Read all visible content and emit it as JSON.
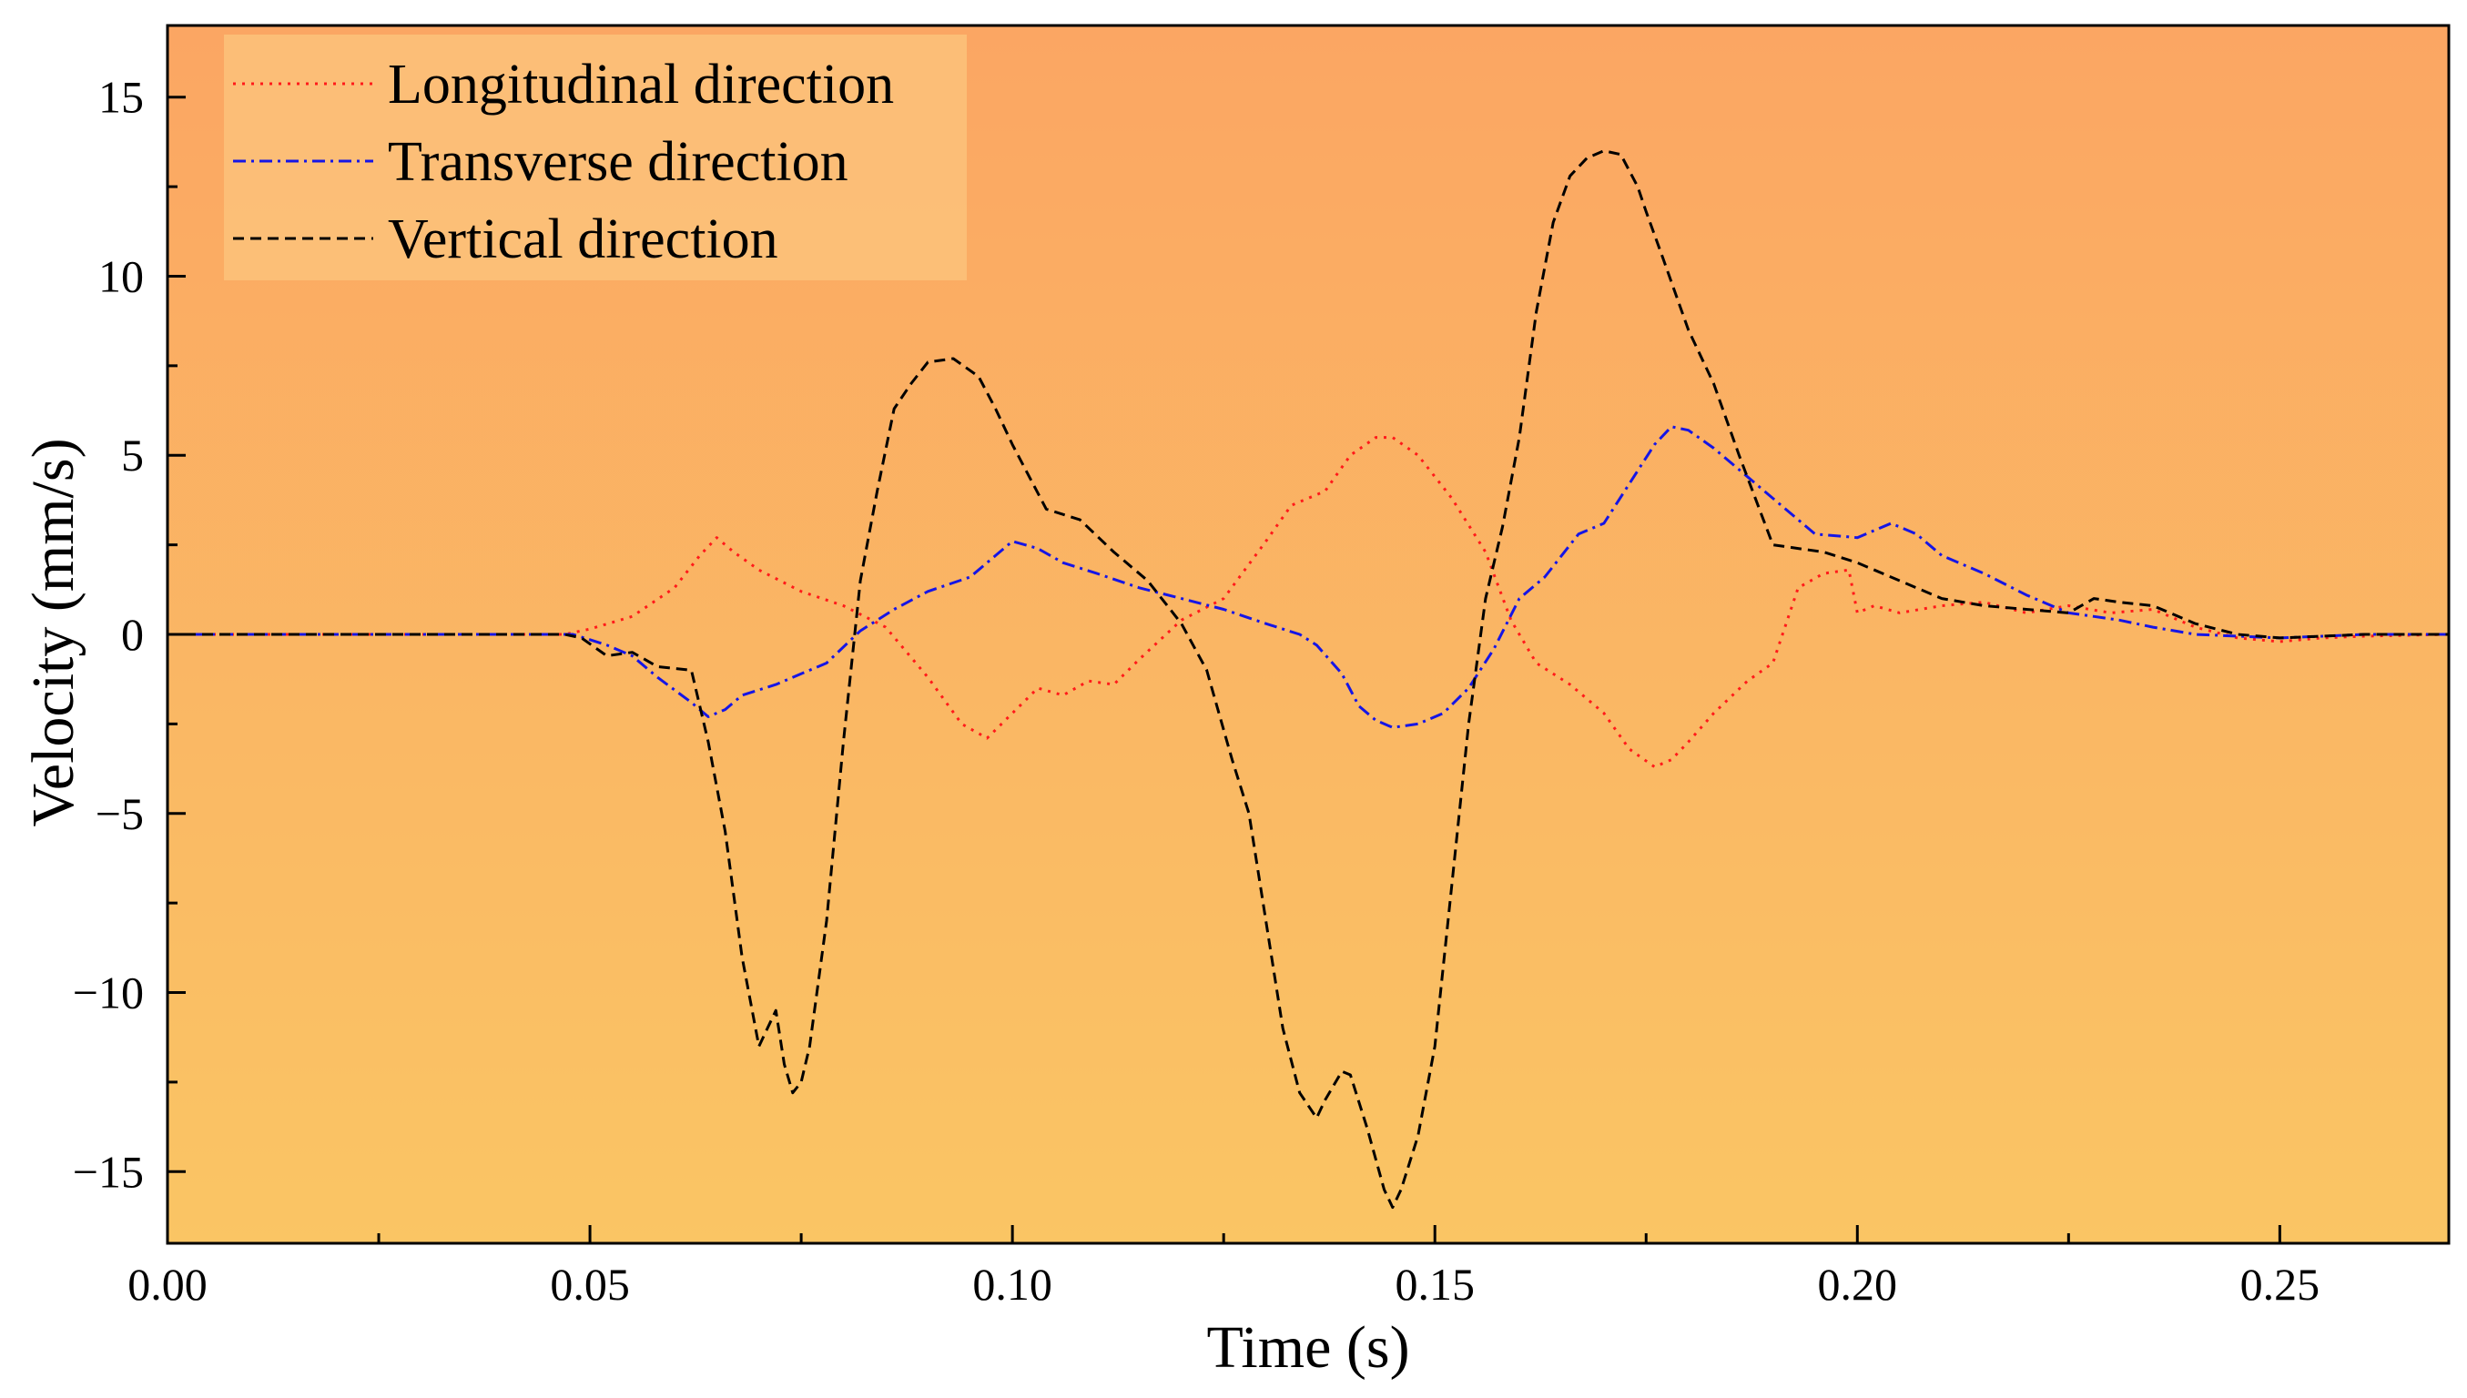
{
  "colors": {
    "background_top": "#FBA663",
    "background_bottom": "#FAC564",
    "legend_background": "#FCC27A",
    "longitudinal": "#FF1A1A",
    "transverse": "#1515E6",
    "vertical": "#000000"
  },
  "chart_data": {
    "type": "line",
    "title": "",
    "xlabel": "Time (s)",
    "ylabel": "Velocity (mm/s)",
    "xlim": [
      0.0,
      0.27
    ],
    "ylim": [
      -17,
      17
    ],
    "xticks": [
      0.0,
      0.05,
      0.1,
      0.15,
      0.2,
      0.25
    ],
    "xtick_labels": [
      "0.00",
      "0.05",
      "0.10",
      "0.15",
      "0.20",
      "0.25"
    ],
    "yticks": [
      -15,
      -10,
      -5,
      0,
      5,
      10,
      15
    ],
    "ytick_labels": [
      "−15",
      "−10",
      "−5",
      "0",
      "5",
      "10",
      "15"
    ],
    "grid": false,
    "legend_position": "top-left",
    "series": [
      {
        "name": "Longitudinal direction",
        "style": "dotted",
        "x": [
          0,
          0.047,
          0.05,
          0.055,
          0.06,
          0.063,
          0.065,
          0.067,
          0.07,
          0.075,
          0.08,
          0.085,
          0.09,
          0.094,
          0.097,
          0.1,
          0.103,
          0.106,
          0.109,
          0.112,
          0.115,
          0.12,
          0.125,
          0.13,
          0.133,
          0.137,
          0.14,
          0.143,
          0.145,
          0.148,
          0.152,
          0.156,
          0.159,
          0.162,
          0.166,
          0.17,
          0.173,
          0.176,
          0.178,
          0.18,
          0.183,
          0.187,
          0.19,
          0.193,
          0.196,
          0.199,
          0.2,
          0.202,
          0.205,
          0.21,
          0.215,
          0.22,
          0.225,
          0.23,
          0.235,
          0.24,
          0.245,
          0.25,
          0.255,
          0.26,
          0.27
        ],
        "y": [
          0,
          0,
          0.15,
          0.5,
          1.3,
          2.2,
          2.7,
          2.3,
          1.8,
          1.2,
          0.8,
          0.2,
          -1.2,
          -2.5,
          -2.9,
          -2.2,
          -1.5,
          -1.7,
          -1.3,
          -1.4,
          -0.7,
          0.4,
          1.0,
          2.6,
          3.6,
          4.0,
          5.0,
          5.5,
          5.5,
          5.0,
          3.8,
          2.3,
          0.4,
          -0.8,
          -1.4,
          -2.2,
          -3.2,
          -3.7,
          -3.5,
          -3.0,
          -2.2,
          -1.3,
          -0.8,
          1.3,
          1.7,
          1.8,
          0.6,
          0.8,
          0.6,
          0.8,
          0.9,
          0.6,
          0.8,
          0.6,
          0.7,
          0.2,
          -0.1,
          -0.2,
          -0.1,
          -0.05,
          0
        ]
      },
      {
        "name": "Transverse direction",
        "style": "dashdot",
        "x": [
          0,
          0.048,
          0.052,
          0.055,
          0.058,
          0.062,
          0.064,
          0.066,
          0.068,
          0.072,
          0.075,
          0.078,
          0.082,
          0.086,
          0.09,
          0.095,
          0.098,
          0.1,
          0.103,
          0.106,
          0.11,
          0.115,
          0.12,
          0.125,
          0.13,
          0.134,
          0.136,
          0.139,
          0.141,
          0.143,
          0.145,
          0.148,
          0.151,
          0.154,
          0.157,
          0.16,
          0.163,
          0.167,
          0.17,
          0.173,
          0.176,
          0.178,
          0.18,
          0.183,
          0.186,
          0.19,
          0.195,
          0.2,
          0.204,
          0.207,
          0.21,
          0.215,
          0.22,
          0.225,
          0.228,
          0.231,
          0.235,
          0.24,
          0.245,
          0.25,
          0.255,
          0.26,
          0.27
        ],
        "y": [
          0,
          0,
          -0.3,
          -0.6,
          -1.2,
          -1.9,
          -2.3,
          -2.1,
          -1.7,
          -1.4,
          -1.1,
          -0.8,
          0.1,
          0.7,
          1.2,
          1.6,
          2.2,
          2.6,
          2.4,
          2.0,
          1.7,
          1.3,
          1.0,
          0.7,
          0.3,
          0.0,
          -0.3,
          -1.1,
          -2.0,
          -2.4,
          -2.6,
          -2.5,
          -2.2,
          -1.5,
          -0.4,
          1.0,
          1.6,
          2.8,
          3.1,
          4.2,
          5.3,
          5.8,
          5.7,
          5.2,
          4.6,
          3.8,
          2.8,
          2.7,
          3.1,
          2.8,
          2.2,
          1.7,
          1.1,
          0.6,
          0.5,
          0.4,
          0.2,
          0.0,
          -0.05,
          -0.1,
          -0.05,
          0,
          0
        ]
      },
      {
        "name": "Vertical direction",
        "style": "dashed",
        "x": [
          0,
          0.047,
          0.049,
          0.052,
          0.055,
          0.058,
          0.062,
          0.064,
          0.066,
          0.068,
          0.07,
          0.071,
          0.072,
          0.073,
          0.074,
          0.075,
          0.076,
          0.078,
          0.08,
          0.082,
          0.084,
          0.086,
          0.088,
          0.09,
          0.093,
          0.096,
          0.098,
          0.1,
          0.104,
          0.108,
          0.112,
          0.116,
          0.12,
          0.123,
          0.126,
          0.128,
          0.13,
          0.132,
          0.134,
          0.136,
          0.137,
          0.139,
          0.14,
          0.142,
          0.144,
          0.145,
          0.146,
          0.148,
          0.15,
          0.152,
          0.154,
          0.156,
          0.158,
          0.16,
          0.162,
          0.164,
          0.166,
          0.168,
          0.17,
          0.172,
          0.174,
          0.175,
          0.177,
          0.18,
          0.183,
          0.186,
          0.19,
          0.193,
          0.196,
          0.2,
          0.205,
          0.21,
          0.215,
          0.22,
          0.225,
          0.228,
          0.231,
          0.235,
          0.24,
          0.245,
          0.25,
          0.255,
          0.26,
          0.27
        ],
        "y": [
          0,
          0,
          -0.1,
          -0.6,
          -0.5,
          -0.9,
          -1.0,
          -3.0,
          -5.5,
          -9.0,
          -11.5,
          -11.0,
          -10.5,
          -12.0,
          -12.8,
          -12.5,
          -11.5,
          -8.0,
          -3.0,
          1.5,
          4.0,
          6.3,
          7.0,
          7.6,
          7.7,
          7.2,
          6.3,
          5.3,
          3.5,
          3.2,
          2.3,
          1.5,
          0.3,
          -1.0,
          -3.5,
          -5.0,
          -8.0,
          -11.0,
          -12.8,
          -13.5,
          -13.0,
          -12.2,
          -12.3,
          -13.8,
          -15.5,
          -16.0,
          -15.5,
          -14.0,
          -11.5,
          -7.0,
          -2.5,
          1.0,
          3.0,
          5.5,
          9.0,
          11.5,
          12.8,
          13.3,
          13.5,
          13.4,
          12.5,
          11.8,
          10.5,
          8.5,
          7.0,
          5.0,
          2.5,
          2.4,
          2.3,
          2.0,
          1.5,
          1.0,
          0.8,
          0.7,
          0.6,
          1.0,
          0.9,
          0.8,
          0.3,
          0.0,
          -0.1,
          -0.05,
          0,
          0
        ]
      }
    ]
  }
}
